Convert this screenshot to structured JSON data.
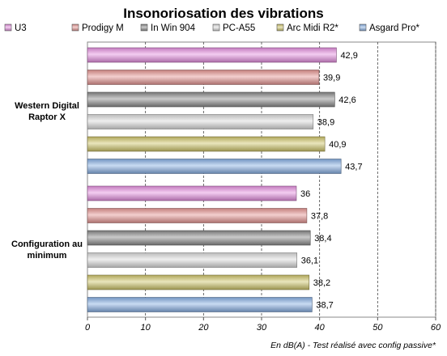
{
  "chart_data": {
    "type": "bar",
    "orientation": "horizontal",
    "title": "Insonoriosation des vibrations",
    "xlabel": "En dB(A) - Test réalisé avec config passive*",
    "ylabel": "",
    "xlim": [
      0,
      60
    ],
    "ticks": [
      0,
      10,
      20,
      30,
      40,
      50,
      60
    ],
    "grid": true,
    "legend_position": "top",
    "categories": [
      "Western Digital Raptor X",
      "Configuration au minimum"
    ],
    "category_lines": [
      [
        "Western Digital",
        "Raptor X"
      ],
      [
        "Configuration au",
        "minimum"
      ]
    ],
    "series": [
      {
        "name": "U3",
        "color": "#e58fe0",
        "values": [
          42.9,
          36
        ],
        "labels": [
          "42,9",
          "36"
        ]
      },
      {
        "name": "Prodigy M",
        "color": "#e59592",
        "values": [
          39.9,
          37.8
        ],
        "labels": [
          "39,9",
          "37,8"
        ]
      },
      {
        "name": "In Win 904",
        "color": "#8a8a8a",
        "values": [
          42.6,
          38.4
        ],
        "labels": [
          "42,6",
          "38,4"
        ]
      },
      {
        "name": "PC-A55",
        "color": "#dcdcdc",
        "values": [
          38.9,
          36.1
        ],
        "labels": [
          "38,9",
          "36,1"
        ]
      },
      {
        "name": "Arc Midi R2*",
        "color": "#cfc56a",
        "values": [
          40.9,
          38.2
        ],
        "labels": [
          "40,9",
          "38,2"
        ]
      },
      {
        "name": "Asgard Pro*",
        "color": "#86aee3",
        "values": [
          43.7,
          38.7
        ],
        "labels": [
          "43,7",
          "38,7"
        ]
      }
    ]
  }
}
